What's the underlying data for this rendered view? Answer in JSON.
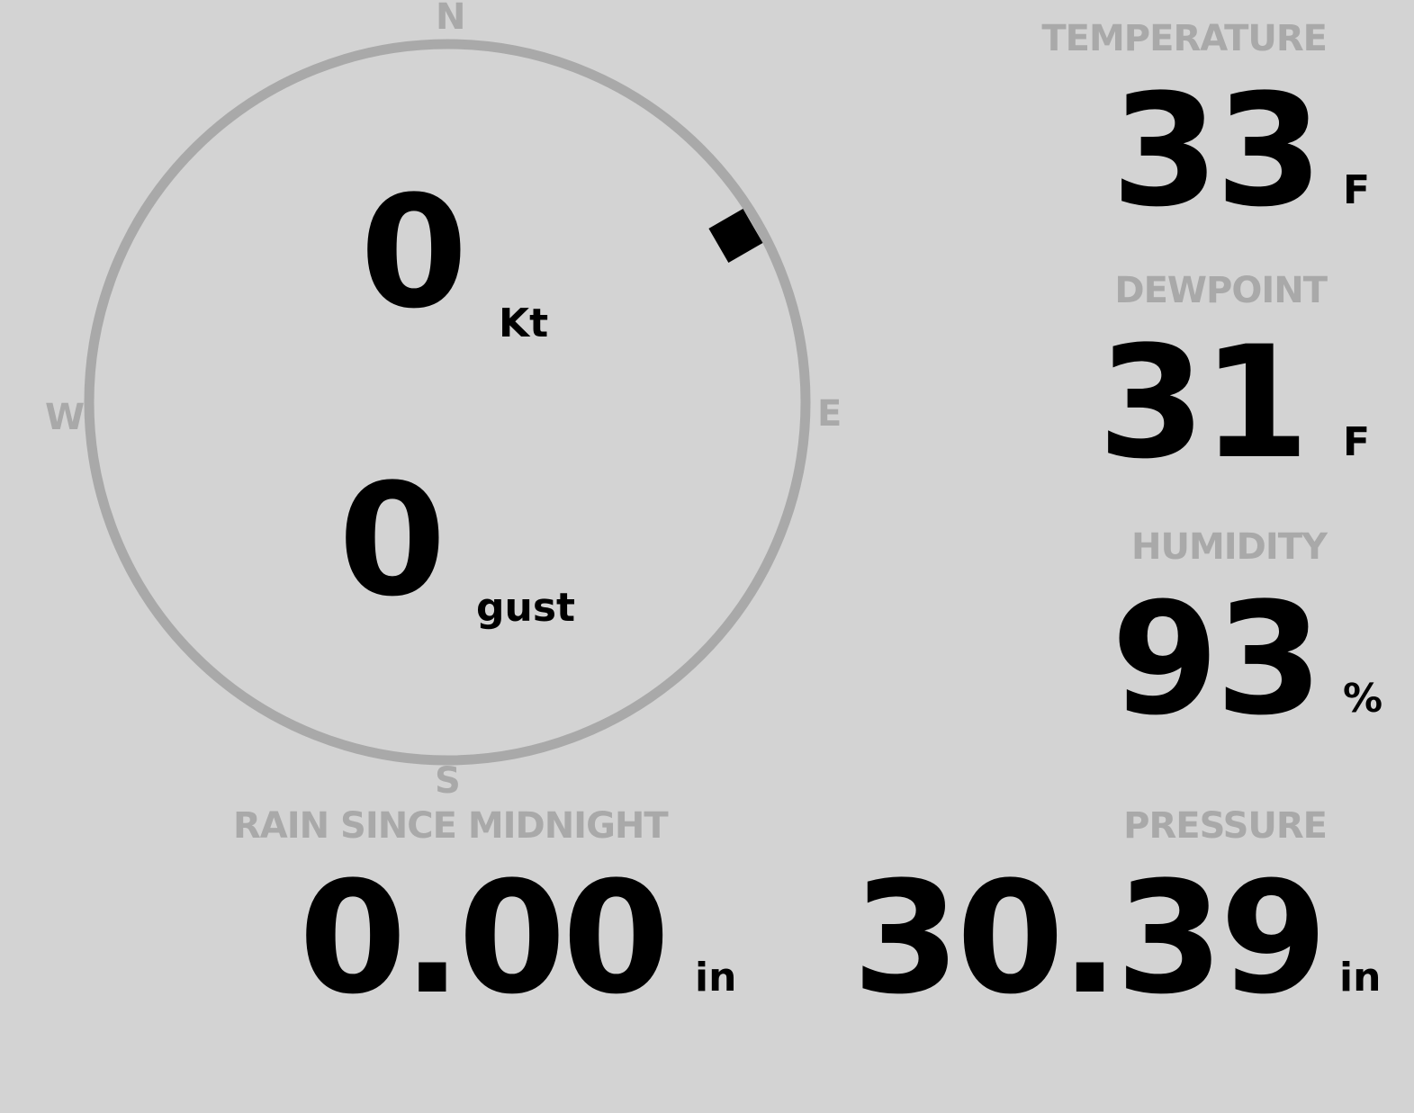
{
  "compass": {
    "north": "N",
    "south": "S",
    "east": "E",
    "west": "W",
    "wind_direction_deg": 60,
    "ring_color": "#a9a9a9",
    "marker_color": "#000000"
  },
  "wind": {
    "speed": "0",
    "speed_unit": "Kt",
    "gust": "0",
    "gust_unit": "gust"
  },
  "temperature": {
    "label": "TEMPERATURE",
    "value": "33",
    "unit": "F"
  },
  "dewpoint": {
    "label": "DEWPOINT",
    "value": "31",
    "unit": "F"
  },
  "humidity": {
    "label": "HUMIDITY",
    "value": "93",
    "unit": "%"
  },
  "rain": {
    "label": "RAIN SINCE MIDNIGHT",
    "value": "0.00",
    "unit": "in"
  },
  "pressure": {
    "label": "PRESSURE",
    "value": "30.39",
    "unit": "in"
  },
  "colors": {
    "background": "#d3d3d3",
    "label": "#a9a9a9",
    "value": "#000000"
  }
}
